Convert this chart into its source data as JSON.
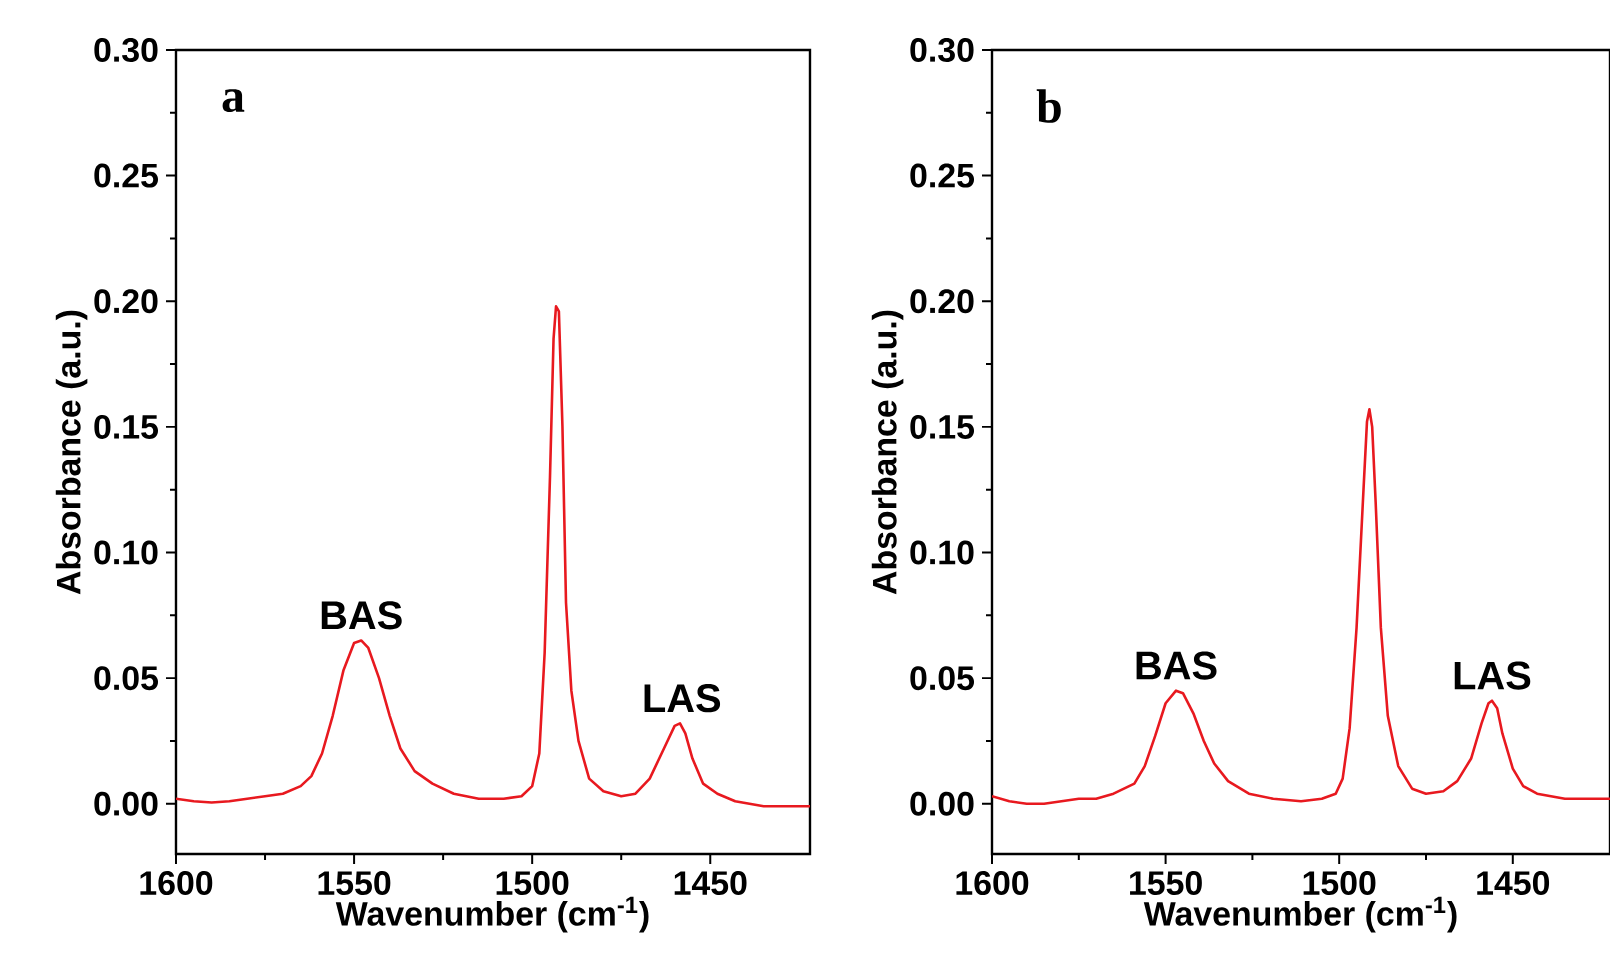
{
  "chart_data": [
    {
      "type": "line",
      "xlabel": "Wavenumber (cm$^{-1}$)",
      "ylabel": "Absorbance (a.u.)",
      "xlim": [
        1600,
        1422
      ],
      "ylim": [
        -0.02,
        0.3
      ],
      "xticks": [
        1600,
        1550,
        1500,
        1450
      ],
      "yticks": [
        {
          "value": 0,
          "label": "0.00"
        },
        {
          "value": 0.05,
          "label": "0.05"
        },
        {
          "value": 0.1,
          "label": "0.10"
        },
        {
          "value": 0.15,
          "label": "0.15"
        },
        {
          "value": 0.2,
          "label": "0.20"
        },
        {
          "value": 0.25,
          "label": "0.25"
        },
        {
          "value": 0.3,
          "label": "0.30"
        }
      ],
      "annotations": [
        "a",
        {
          "text": "BAS",
          "x": 1548,
          "y": 0.065
        },
        {
          "text": "LAS",
          "x": 1458,
          "y": 0.032
        }
      ],
      "x": [
        1600,
        1595,
        1590,
        1585,
        1580,
        1575,
        1570,
        1565,
        1562,
        1559,
        1556,
        1553,
        1550,
        1548,
        1546,
        1543,
        1540,
        1537,
        1533,
        1528,
        1522,
        1515,
        1508,
        1503,
        1500,
        1498,
        1496.5,
        1495,
        1494,
        1493.3,
        1492.5,
        1491.5,
        1490.5,
        1489,
        1487,
        1484,
        1480,
        1475,
        1471,
        1467,
        1463,
        1460,
        1458.5,
        1457,
        1455,
        1452,
        1448,
        1443,
        1435,
        1425,
        1422
      ],
      "series": [
        {
          "color": "#e8191f",
          "values": [
            0.002,
            0.001,
            0.0005,
            0.001,
            0.002,
            0.003,
            0.004,
            0.007,
            0.011,
            0.02,
            0.035,
            0.053,
            0.064,
            0.065,
            0.062,
            0.05,
            0.035,
            0.022,
            0.013,
            0.008,
            0.004,
            0.002,
            0.002,
            0.003,
            0.007,
            0.02,
            0.06,
            0.13,
            0.185,
            0.198,
            0.196,
            0.15,
            0.08,
            0.045,
            0.025,
            0.01,
            0.005,
            0.003,
            0.004,
            0.01,
            0.022,
            0.031,
            0.032,
            0.028,
            0.018,
            0.008,
            0.004,
            0.001,
            -0.001,
            -0.001,
            -0.001
          ]
        }
      ]
    },
    {
      "type": "line",
      "xlabel": "Wavenumber (cm$^{-1}$)",
      "ylabel": "Absorbance (a.u.)",
      "xlim": [
        1600,
        1422
      ],
      "ylim": [
        -0.02,
        0.3
      ],
      "xticks": [
        1600,
        1550,
        1500,
        1450
      ],
      "yticks": [
        {
          "value": 0,
          "label": "0.00"
        },
        {
          "value": 0.05,
          "label": "0.05"
        },
        {
          "value": 0.1,
          "label": "0.10"
        },
        {
          "value": 0.15,
          "label": "0.15"
        },
        {
          "value": 0.2,
          "label": "0.20"
        },
        {
          "value": 0.25,
          "label": "0.25"
        },
        {
          "value": 0.3,
          "label": "0.30"
        }
      ],
      "annotations": [
        "b",
        {
          "text": "BAS",
          "x": 1547,
          "y": 0.045
        },
        {
          "text": "LAS",
          "x": 1456,
          "y": 0.041
        }
      ],
      "x": [
        1600,
        1595,
        1590,
        1585,
        1580,
        1575,
        1570,
        1565,
        1559,
        1556,
        1553,
        1550,
        1547,
        1545,
        1542,
        1539,
        1536,
        1532,
        1526,
        1519,
        1511,
        1505,
        1501,
        1499,
        1497,
        1495,
        1493,
        1492,
        1491.3,
        1490.5,
        1489.5,
        1488,
        1486,
        1483,
        1479,
        1475,
        1470,
        1466,
        1462,
        1459,
        1457,
        1456,
        1454.5,
        1453,
        1450,
        1447,
        1443,
        1435,
        1428,
        1422
      ],
      "series": [
        {
          "color": "#e8191f",
          "values": [
            0.003,
            0.001,
            0.0,
            0.0,
            0.001,
            0.002,
            0.002,
            0.004,
            0.008,
            0.015,
            0.027,
            0.04,
            0.045,
            0.044,
            0.036,
            0.025,
            0.016,
            0.009,
            0.004,
            0.002,
            0.001,
            0.002,
            0.004,
            0.01,
            0.03,
            0.07,
            0.125,
            0.152,
            0.157,
            0.15,
            0.12,
            0.07,
            0.035,
            0.015,
            0.006,
            0.004,
            0.005,
            0.009,
            0.018,
            0.032,
            0.04,
            0.041,
            0.038,
            0.028,
            0.014,
            0.007,
            0.004,
            0.002,
            0.002,
            0.002
          ]
        }
      ]
    }
  ]
}
